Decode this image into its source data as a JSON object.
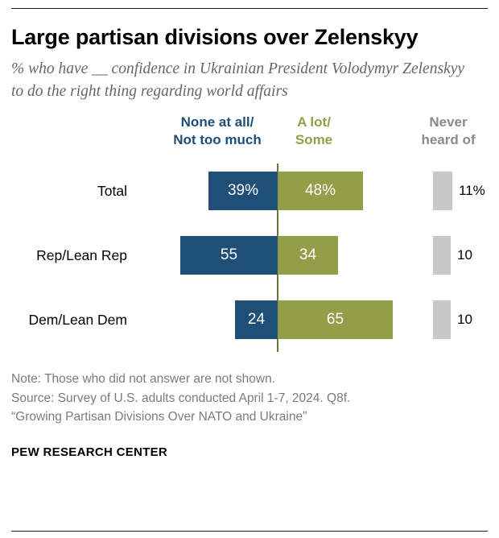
{
  "header": {
    "title": "Large partisan divisions over Zelenskyy",
    "subtitle": "% who have __ confidence in Ukrainian President Volodymyr Zelenskyy to do the right thing regarding world affairs"
  },
  "chart_data": {
    "type": "bar",
    "orientation": "horizontal-diverging",
    "categories": [
      "Total",
      "Rep/Lean Rep",
      "Dem/Lean Dem"
    ],
    "series": [
      {
        "name": "None at all/Not too much",
        "values": [
          39,
          55,
          24
        ],
        "display_labels": [
          "39%",
          "55",
          "24"
        ],
        "color": "#1f4e79"
      },
      {
        "name": "A lot/Some",
        "values": [
          48,
          34,
          65
        ],
        "display_labels": [
          "48%",
          "34",
          "65"
        ],
        "color": "#949d48"
      },
      {
        "name": "Never heard of",
        "values": [
          11,
          10,
          10
        ],
        "display_labels": [
          "11%",
          "10",
          "10"
        ],
        "color": "#c8c8c8"
      }
    ],
    "column_headers": [
      {
        "label_line1": "None at all/",
        "label_line2": "Not too much",
        "color": "#1f4e79"
      },
      {
        "label_line1": "A lot/",
        "label_line2": "Some",
        "color": "#949d48"
      },
      {
        "label_line1": "Never",
        "label_line2": "heard of",
        "color": "#8a8a8a"
      }
    ],
    "legend_position": "top",
    "grid": false,
    "xlim": [
      -100,
      100
    ]
  },
  "footer": {
    "note": "Note: Those who did not answer are not shown.",
    "source_line1": "Source: Survey of U.S. adults conducted April 1-7, 2024. Q8f.",
    "source_line2": "“Growing Partisan Divisions Over NATO and Ukraine”",
    "brand": "PEW RESEARCH CENTER"
  }
}
